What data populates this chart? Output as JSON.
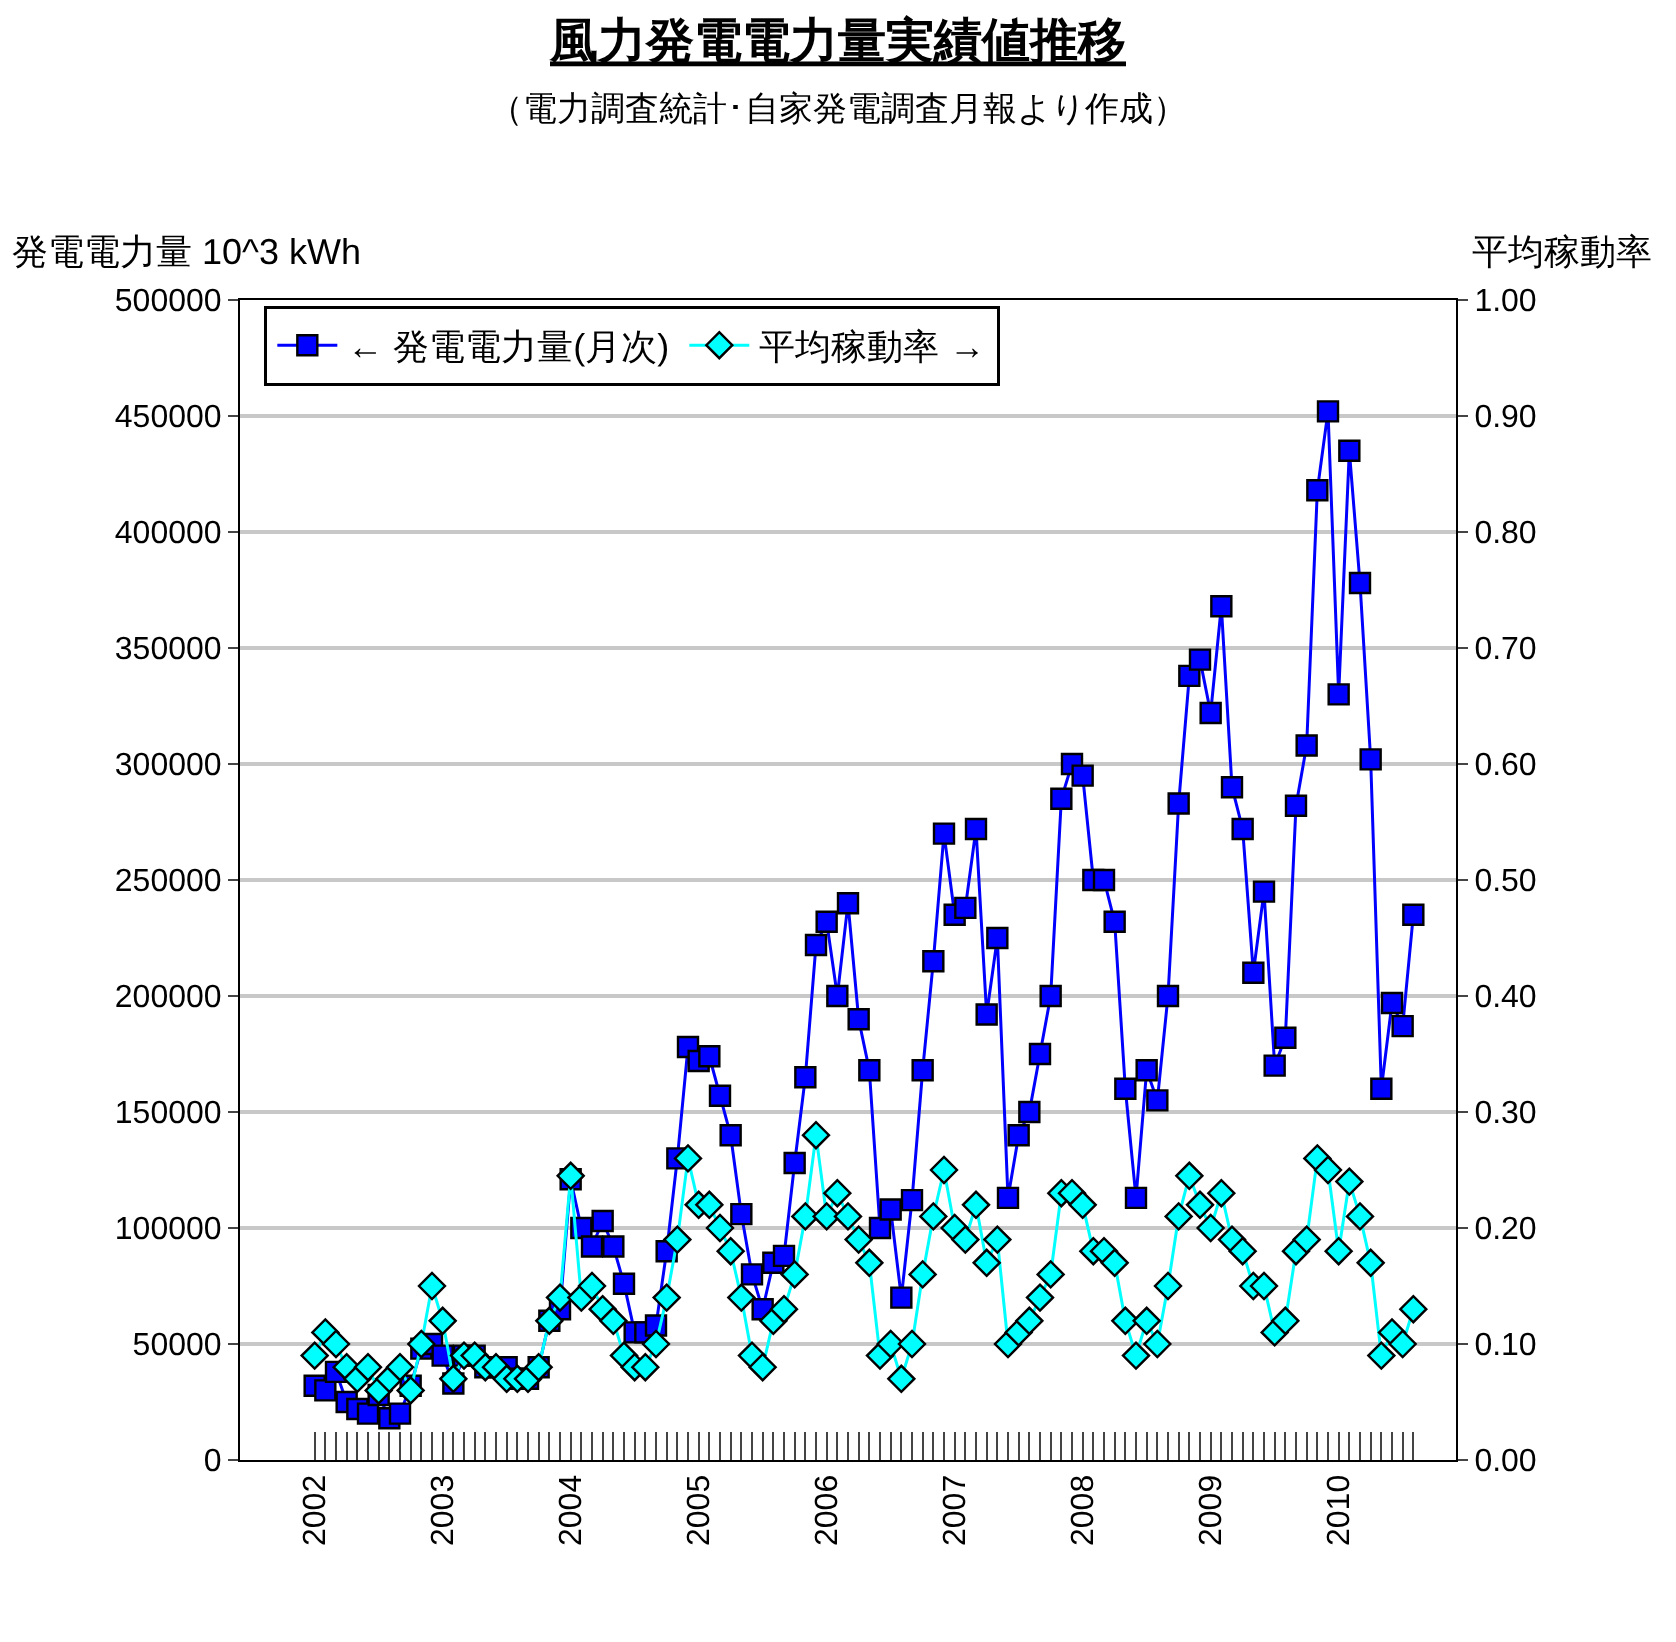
{
  "chart_data": {
    "type": "line",
    "title": "風力発電電力量実績値推移",
    "subtitle": "（電力調査統計･自家発電調査月報より作成）",
    "ylabel": "発電電力量 10^3 kWh",
    "y2label": "平均稼動率",
    "categories": [
      "2002",
      null,
      null,
      null,
      null,
      null,
      null,
      null,
      null,
      null,
      null,
      null,
      "2003",
      null,
      null,
      null,
      null,
      null,
      null,
      null,
      null,
      null,
      null,
      null,
      "2004",
      null,
      null,
      null,
      null,
      null,
      null,
      null,
      null,
      null,
      null,
      null,
      "2005",
      null,
      null,
      null,
      null,
      null,
      null,
      null,
      null,
      null,
      null,
      null,
      "2006",
      null,
      null,
      null,
      null,
      null,
      null,
      null,
      null,
      null,
      null,
      null,
      "2007",
      null,
      null,
      null,
      null,
      null,
      null,
      null,
      null,
      null,
      null,
      null,
      "2008",
      null,
      null,
      null,
      null,
      null,
      null,
      null,
      null,
      null,
      null,
      null,
      "2009",
      null,
      null,
      null,
      null,
      null,
      null,
      null,
      null,
      null,
      null,
      null,
      "2010",
      null,
      null,
      null,
      null,
      null,
      null,
      null
    ],
    "ylim": [
      0,
      500000
    ],
    "yticks": [
      0,
      50000,
      100000,
      150000,
      200000,
      250000,
      300000,
      350000,
      400000,
      450000,
      500000
    ],
    "y2lim": [
      0,
      1
    ],
    "y2ticks": [
      {
        "value": 0,
        "label": "0.00"
      },
      {
        "value": 0.1,
        "label": "0.10"
      },
      {
        "value": 0.2,
        "label": "0.20"
      },
      {
        "value": 0.3,
        "label": "0.30"
      },
      {
        "value": 0.4,
        "label": "0.40"
      },
      {
        "value": 0.5,
        "label": "0.50"
      },
      {
        "value": 0.6,
        "label": "0.60"
      },
      {
        "value": 0.7,
        "label": "0.70"
      },
      {
        "value": 0.8,
        "label": "0.80"
      },
      {
        "value": 0.9,
        "label": "0.90"
      },
      {
        "value": 1,
        "label": "1.00"
      }
    ],
    "grid": "y",
    "legend": "top",
    "series": [
      {
        "name": "← 発電電力量(月次)",
        "color": "#0000ff",
        "marker": "square",
        "values": [
          32000,
          30000,
          38000,
          25000,
          22000,
          20000,
          28000,
          18000,
          20000,
          32000,
          48000,
          50000,
          45000,
          33000,
          45000,
          45000,
          40000,
          40000,
          40000,
          35000,
          35000,
          40000,
          60000,
          65000,
          121000,
          100000,
          92000,
          103000,
          92000,
          76000,
          55000,
          55000,
          58000,
          90000,
          130000,
          178000,
          172000,
          174000,
          157000,
          140000,
          106000,
          80000,
          65000,
          85000,
          88000,
          128000,
          165000,
          222000,
          232000,
          200000,
          240000,
          190000,
          168000,
          100000,
          108000,
          70000,
          112000,
          168000,
          215000,
          270000,
          235000,
          238000,
          272000,
          192000,
          225000,
          113000,
          140000,
          150000,
          175000,
          200000,
          285000,
          300000,
          295000,
          250000,
          250000,
          232000,
          160000,
          113000,
          168000,
          155000,
          200000,
          283000,
          338000,
          345000,
          322000,
          368000,
          290000,
          272000,
          210000,
          245000,
          170000,
          182000,
          282000,
          308000,
          418000,
          452000,
          330000,
          435000,
          378000,
          302000,
          160000,
          197000,
          187000,
          235000
        ]
      },
      {
        "name": "平均稼動率 →",
        "color": "#00ffff",
        "marker": "diamond",
        "axis": "y2",
        "values": [
          0.09,
          0.11,
          0.1,
          0.08,
          0.07,
          0.08,
          0.06,
          0.07,
          0.08,
          0.06,
          0.1,
          0.15,
          0.12,
          0.07,
          0.09,
          0.09,
          0.08,
          0.08,
          0.07,
          0.07,
          0.07,
          0.08,
          0.12,
          0.14,
          0.245,
          0.14,
          0.15,
          0.13,
          0.12,
          0.09,
          0.08,
          0.08,
          0.1,
          0.14,
          0.19,
          0.26,
          0.22,
          0.22,
          0.2,
          0.18,
          0.14,
          0.09,
          0.08,
          0.12,
          0.13,
          0.16,
          0.21,
          0.28,
          0.21,
          0.23,
          0.21,
          0.19,
          0.17,
          0.09,
          0.1,
          0.07,
          0.1,
          0.16,
          0.21,
          0.25,
          0.2,
          0.19,
          0.22,
          0.17,
          0.19,
          0.1,
          0.11,
          0.12,
          0.14,
          0.16,
          0.23,
          0.23,
          0.22,
          0.18,
          0.18,
          0.17,
          0.12,
          0.09,
          0.12,
          0.1,
          0.15,
          0.21,
          0.245,
          0.22,
          0.2,
          0.23,
          0.19,
          0.18,
          0.15,
          0.15,
          0.11,
          0.12,
          0.18,
          0.19,
          0.26,
          0.25,
          0.18,
          0.24,
          0.21,
          0.17,
          0.09,
          0.11,
          0.1,
          0.13
        ]
      }
    ]
  }
}
